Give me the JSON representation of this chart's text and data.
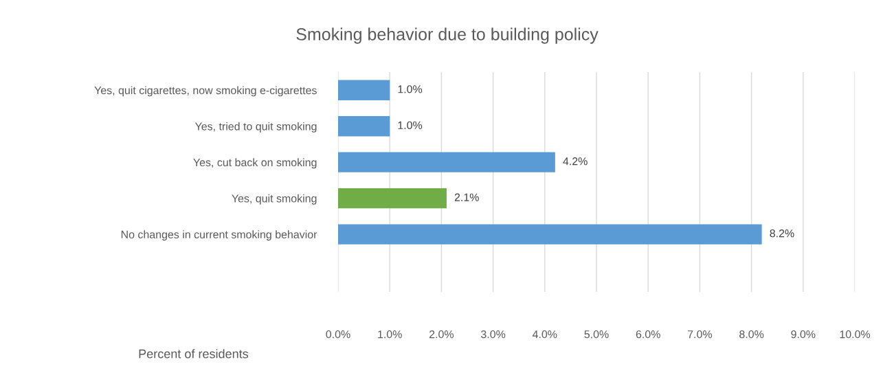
{
  "chart_data": {
    "type": "bar",
    "orientation": "horizontal",
    "title": "Smoking behavior due to building policy",
    "xlabel": "Percent of residents",
    "categories": [
      "Yes, quit cigarettes, now smoking e-cigarettes",
      "Yes, tried to quit smoking",
      "Yes, cut back on smoking",
      "Yes, quit smoking",
      "No changes in current smoking behavior"
    ],
    "values": [
      1.0,
      1.0,
      4.2,
      2.1,
      8.2
    ],
    "colors": [
      "#5b9bd5",
      "#5b9bd5",
      "#5b9bd5",
      "#70ad47",
      "#5b9bd5"
    ],
    "value_labels": [
      "1.0%",
      "1.0%",
      "4.2%",
      "2.1%",
      "8.2%"
    ],
    "xlim": [
      0,
      10
    ],
    "xticks": [
      {
        "value": 0,
        "label": "0.0%"
      },
      {
        "value": 1,
        "label": "1.0%"
      },
      {
        "value": 2,
        "label": "2.0%"
      },
      {
        "value": 3,
        "label": "3.0%"
      },
      {
        "value": 4,
        "label": "4.0%"
      },
      {
        "value": 5,
        "label": "5.0%"
      },
      {
        "value": 6,
        "label": "6.0%"
      },
      {
        "value": 7,
        "label": "7.0%"
      },
      {
        "value": 8,
        "label": "8.0%"
      },
      {
        "value": 9,
        "label": "9.0%"
      },
      {
        "value": 10,
        "label": "10.0%"
      }
    ],
    "grid": "x",
    "legend": false
  }
}
